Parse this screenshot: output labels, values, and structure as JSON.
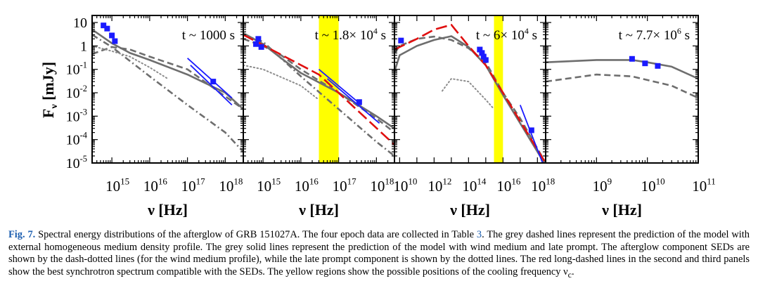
{
  "figure": {
    "ylabel_main": "F",
    "ylabel_sub": "ν",
    "ylabel_unit": "[mJy]",
    "ytick_labels": [
      {
        "mantissa": "10",
        "exp": "",
        "log": 1
      },
      {
        "mantissa": "1",
        "exp": "",
        "log": 0
      },
      {
        "mantissa": "10",
        "exp": "-1",
        "log": -1
      },
      {
        "mantissa": "10",
        "exp": "-2",
        "log": -2
      },
      {
        "mantissa": "10",
        "exp": "-3",
        "log": -3
      },
      {
        "mantissa": "10",
        "exp": "-4",
        "log": -4
      },
      {
        "mantissa": "10",
        "exp": "-5",
        "log": -5
      }
    ],
    "colors": {
      "data": "#1a1aff",
      "model_grey": "#6e6e6e",
      "dotted_grey": "#8c8c8c",
      "red_fit": "#e01010",
      "blue_fit": "#1a1aff",
      "yellow_region": "#ffff00"
    }
  },
  "chart_data": [
    {
      "type": "line",
      "panel": 1,
      "epoch_label": {
        "prefix": "t ~ ",
        "value": "1000",
        "exp": "",
        "suffix": " s"
      },
      "xlabel": "ν [Hz]",
      "ylabel": "Fν [mJy]",
      "x_scale": "log",
      "y_scale": "log",
      "xlim": [
        300000000000000.0,
        3e+18
      ],
      "ylim": [
        1e-05,
        20
      ],
      "xticks": [
        {
          "mantissa": "10",
          "exp": "15",
          "log": 15
        },
        {
          "mantissa": "10",
          "exp": "16",
          "log": 16
        },
        {
          "mantissa": "10",
          "exp": "17",
          "log": 17
        },
        {
          "mantissa": "10",
          "exp": "18",
          "log": 18
        }
      ],
      "yellow_region": null,
      "data_points": [
        {
          "x": 600000000000000.0,
          "y": 7.5
        },
        {
          "x": 750000000000000.0,
          "y": 5.5
        },
        {
          "x": 1000000000000000.0,
          "y": 2.8
        },
        {
          "x": 1200000000000000.0,
          "y": 1.6
        },
        {
          "x": 4.8e+17,
          "y": 0.03
        }
      ],
      "series": [
        {
          "name": "homogeneous medium model",
          "style": "dashed",
          "color": "#6e6e6e",
          "points": [
            [
              300000000000000.0,
              0.45
            ],
            [
              1000000000000000.0,
              0.9
            ],
            [
              3000000000000000.0,
              0.7
            ],
            [
              1e+16,
              0.35
            ],
            [
              1e+17,
              0.1
            ],
            [
              1e+18,
              0.007
            ],
            [
              3e+18,
              0.002
            ]
          ]
        },
        {
          "name": "wind medium + late prompt",
          "style": "solid",
          "color": "#6e6e6e",
          "points": [
            [
              300000000000000.0,
              5.0
            ],
            [
              1000000000000000.0,
              1.3
            ],
            [
              3000000000000000.0,
              0.5
            ],
            [
              1e+16,
              0.25
            ],
            [
              1e+17,
              0.06
            ],
            [
              1e+18,
              0.01
            ],
            [
              3e+18,
              0.002
            ]
          ]
        },
        {
          "name": "afterglow component",
          "style": "dashdot",
          "color": "#6e6e6e",
          "points": [
            [
              300000000000000.0,
              3.0
            ],
            [
              1000000000000000.0,
              0.9
            ],
            [
              1e+16,
              0.05
            ],
            [
              1e+17,
              0.003
            ],
            [
              1e+18,
              0.0002
            ],
            [
              3e+18,
              3e-05
            ]
          ]
        },
        {
          "name": "late prompt component",
          "style": "dotted",
          "color": "#8c8c8c",
          "points": [
            [
              300000000000000.0,
              1.0
            ],
            [
              1000000000000000.0,
              0.6
            ],
            [
              3000000000000000.0,
              0.35
            ],
            [
              1e+16,
              0.12
            ],
            [
              3e+16,
              0.04
            ]
          ]
        },
        {
          "name": "X-ray fit",
          "style": "solid",
          "color": "#1a1aff",
          "points": [
            [
              1e+17,
              0.3
            ],
            [
              1.5e+18,
              0.006
            ]
          ]
        },
        {
          "name": "X-ray fit 2",
          "style": "solid",
          "color": "#1a1aff",
          "points": [
            [
              1.2e+17,
              0.15
            ],
            [
              1.5e+18,
              0.003
            ]
          ]
        }
      ]
    },
    {
      "type": "line",
      "panel": 2,
      "epoch_label": {
        "prefix": "t ~ ",
        "value": "1.8× 10",
        "exp": "4",
        "suffix": " s"
      },
      "xlabel": "ν [Hz]",
      "ylabel": "Fν [mJy]",
      "x_scale": "log",
      "y_scale": "log",
      "xlim": [
        300000000000000.0,
        3e+18
      ],
      "ylim": [
        1e-05,
        20
      ],
      "xticks": [
        {
          "mantissa": "10",
          "exp": "15",
          "log": 15
        },
        {
          "mantissa": "10",
          "exp": "16",
          "log": 16
        },
        {
          "mantissa": "10",
          "exp": "17",
          "log": 17
        },
        {
          "mantissa": "10",
          "exp": "18",
          "log": 18
        }
      ],
      "yellow_region": [
        3e+16,
        1e+17
      ],
      "data_points": [
        {
          "x": 650000000000000.0,
          "y": 1.2
        },
        {
          "x": 750000000000000.0,
          "y": 2.0
        },
        {
          "x": 900000000000000.0,
          "y": 0.9
        },
        {
          "x": 3.5e+17,
          "y": 0.004
        }
      ],
      "series": [
        {
          "name": "homogeneous medium model",
          "style": "dashed",
          "color": "#6e6e6e",
          "points": [
            [
              300000000000000.0,
              2.0
            ],
            [
              1000000000000000.0,
              1.0
            ],
            [
              3000000000000000.0,
              0.4
            ],
            [
              1e+16,
              0.1
            ],
            [
              1e+17,
              0.01
            ],
            [
              1e+18,
              0.0008
            ],
            [
              3e+18,
              0.0002
            ]
          ]
        },
        {
          "name": "wind medium + late prompt",
          "style": "solid",
          "color": "#6e6e6e",
          "points": [
            [
              300000000000000.0,
              3.5
            ],
            [
              1000000000000000.0,
              1.2
            ],
            [
              3000000000000000.0,
              0.3
            ],
            [
              1e+16,
              0.07
            ],
            [
              1e+17,
              0.01
            ],
            [
              1e+18,
              0.001
            ],
            [
              3e+18,
              0.0003
            ]
          ]
        },
        {
          "name": "afterglow component",
          "style": "dashdot",
          "color": "#6e6e6e",
          "points": [
            [
              300000000000000.0,
              3.0
            ],
            [
              1000000000000000.0,
              1.5
            ],
            [
              1e+16,
              0.05
            ],
            [
              1e+17,
              0.002
            ],
            [
              1e+18,
              8e-05
            ],
            [
              3e+18,
              2e-05
            ]
          ]
        },
        {
          "name": "late prompt component",
          "style": "dotted",
          "color": "#8c8c8c",
          "points": [
            [
              300000000000000.0,
              0.15
            ],
            [
              1000000000000000.0,
              0.1
            ],
            [
              1e+16,
              0.02
            ],
            [
              3e+16,
              0.005
            ]
          ]
        },
        {
          "name": "synchrotron fit",
          "style": "longdash",
          "color": "#e01010",
          "points": [
            [
              300000000000000.0,
              3.0
            ],
            [
              3e+16,
              0.06
            ],
            [
              3e+18,
              6e-05
            ]
          ]
        },
        {
          "name": "X-ray fit",
          "style": "solid",
          "color": "#1a1aff",
          "points": [
            [
              3e+16,
              0.1
            ],
            [
              4e+17,
              0.003
            ]
          ]
        },
        {
          "name": "X-ray fit 2",
          "style": "solid",
          "color": "#1a1aff",
          "points": [
            [
              5e+16,
              0.04
            ],
            [
              1.2e+18,
              0.0005
            ]
          ]
        }
      ]
    },
    {
      "type": "line",
      "panel": 3,
      "epoch_label": {
        "prefix": "t ~ ",
        "value": "6× 10",
        "exp": "4",
        "suffix": " s"
      },
      "xlabel": "ν [Hz]",
      "ylabel": "Fν [mJy]",
      "x_scale": "log",
      "y_scale": "log",
      "xlim": [
        5000000000.0,
        3e+18
      ],
      "ylim": [
        1e-05,
        20
      ],
      "xticks": [
        {
          "mantissa": "10",
          "exp": "10",
          "log": 10
        },
        {
          "mantissa": "10",
          "exp": "12",
          "log": 12
        },
        {
          "mantissa": "10",
          "exp": "14",
          "log": 14
        },
        {
          "mantissa": "10",
          "exp": "16",
          "log": 16
        },
        {
          "mantissa": "10",
          "exp": "18",
          "log": 18
        }
      ],
      "yellow_region": [
        3000000000000000.0,
        1e+16
      ],
      "data_points": [
        {
          "x": 12000000000.0,
          "y": 1.7
        },
        {
          "x": 450000000000000.0,
          "y": 0.7
        },
        {
          "x": 600000000000000.0,
          "y": 0.5
        },
        {
          "x": 750000000000000.0,
          "y": 0.35
        },
        {
          "x": 1000000000000000.0,
          "y": 0.25
        },
        {
          "x": 4.5e+17,
          "y": 0.00025
        }
      ],
      "series": [
        {
          "name": "homogeneous medium model",
          "style": "dashed",
          "color": "#6e6e6e",
          "points": [
            [
              5000000000.0,
              0.5
            ],
            [
              10000000000.0,
              1.0
            ],
            [
              100000000000.0,
              2.0
            ],
            [
              1000000000000.0,
              2.5
            ],
            [
              10000000000000.0,
              1.8
            ],
            [
              100000000000000.0,
              0.8
            ],
            [
              1000000000000000.0,
              0.2
            ],
            [
              1e+16,
              0.01
            ],
            [
              1e+17,
              0.0008
            ],
            [
              3e+18,
              1e-05
            ]
          ]
        },
        {
          "name": "wind medium + late prompt",
          "style": "solid",
          "color": "#6e6e6e",
          "points": [
            [
              5000000000.0,
              0.08
            ],
            [
              10000000000.0,
              0.4
            ],
            [
              100000000000.0,
              1.0
            ],
            [
              1000000000000.0,
              1.8
            ],
            [
              10000000000000.0,
              2.6
            ],
            [
              100000000000000.0,
              0.9
            ],
            [
              1000000000000000.0,
              0.15
            ],
            [
              1e+16,
              0.008
            ],
            [
              1e+17,
              0.0005
            ],
            [
              3e+18,
              8e-06
            ]
          ]
        },
        {
          "name": "late prompt component",
          "style": "dotted",
          "color": "#8c8c8c",
          "points": [
            [
              3000000000000.0,
              0.012
            ],
            [
              10000000000000.0,
              0.04
            ],
            [
              100000000000000.0,
              0.03
            ],
            [
              1000000000000000.0,
              0.005
            ],
            [
              3000000000000000.0,
              0.002
            ]
          ]
        },
        {
          "name": "synchrotron fit",
          "style": "longdash",
          "color": "#e01010",
          "points": [
            [
              5000000000.0,
              0.7
            ],
            [
              100000000000.0,
              2.0
            ],
            [
              1000000000000.0,
              5.0
            ],
            [
              10000000000000.0,
              8.0
            ],
            [
              100000000000000.0,
              1.0
            ],
            [
              1000000000000000.0,
              0.15
            ],
            [
              1e+16,
              0.01
            ],
            [
              1e+17,
              0.0006
            ],
            [
              3e+18,
              1e-05
            ]
          ]
        },
        {
          "name": "X-ray fit",
          "style": "solid",
          "color": "#1a1aff",
          "points": [
            [
              1e+17,
              0.003
            ],
            [
              2e+18,
              1e-05
            ]
          ]
        }
      ]
    },
    {
      "type": "line",
      "panel": 4,
      "epoch_label": {
        "prefix": "t ~ ",
        "value": "7.7× 10",
        "exp": "6",
        "suffix": " s"
      },
      "xlabel": "ν [Hz]",
      "ylabel": "Fν [mJy]",
      "x_scale": "log",
      "y_scale": "log",
      "xlim": [
        100000000.0,
        100000000000.0
      ],
      "ylim": [
        1e-05,
        20
      ],
      "xticks": [
        {
          "mantissa": "10",
          "exp": "9",
          "log": 9
        },
        {
          "mantissa": "10",
          "exp": "10",
          "log": 10
        },
        {
          "mantissa": "10",
          "exp": "11",
          "log": 11
        }
      ],
      "yellow_region": null,
      "data_points": [
        {
          "x": 5000000000.0,
          "y": 0.28
        },
        {
          "x": 9000000000.0,
          "y": 0.18
        },
        {
          "x": 16000000000.0,
          "y": 0.14
        }
      ],
      "series": [
        {
          "name": "wind medium + late prompt",
          "style": "solid",
          "color": "#6e6e6e",
          "points": [
            [
              100000000.0,
              0.2
            ],
            [
              1000000000.0,
              0.25
            ],
            [
              5000000000.0,
              0.25
            ],
            [
              10000000000.0,
              0.2
            ],
            [
              30000000000.0,
              0.13
            ],
            [
              100000000000.0,
              0.04
            ]
          ]
        },
        {
          "name": "homogeneous medium model",
          "style": "dashed",
          "color": "#6e6e6e",
          "points": [
            [
              100000000.0,
              0.03
            ],
            [
              1000000000.0,
              0.06
            ],
            [
              5000000000.0,
              0.05
            ],
            [
              10000000000.0,
              0.035
            ],
            [
              30000000000.0,
              0.02
            ],
            [
              100000000000.0,
              0.006
            ]
          ]
        }
      ]
    }
  ],
  "caption": {
    "fig_label": "Fig. 7.",
    "text_1": " Spectral energy distributions of the afterglow of GRB 151027A. The four epoch data are collected in Table ",
    "table_ref": "3",
    "text_2": ". The grey dashed lines represent the prediction of the model with external homogeneous medium density profile. The grey solid lines represent the prediction of the model with wind medium and late prompt. The afterglow component SEDs are shown by the dash-dotted lines (for the wind medium profile), while the late prompt component is shown by the dotted lines. The red long-dashed lines in the second and third panels show the best synchrotron spectrum compatible with the SEDs. The yellow regions show the possible positions of the cooling frequency ν",
    "text_sub": "c",
    "text_3": "."
  }
}
